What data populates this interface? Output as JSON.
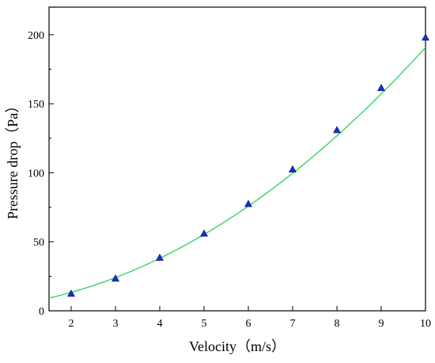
{
  "chart_data": {
    "type": "scatter",
    "xlabel": "Velocity（m/s）",
    "ylabel": "Pressure drop（Pa）",
    "xlim": [
      1.5,
      10
    ],
    "ylim": [
      0,
      220
    ],
    "x_ticks": [
      "2",
      "3",
      "4",
      "5",
      "6",
      "7",
      "8",
      "9",
      "10"
    ],
    "y_ticks": [
      "0",
      "50",
      "100",
      "150",
      "200"
    ],
    "grid": false,
    "legend": "none",
    "series": [
      {
        "type": "scatter",
        "marker": "triangle",
        "color": "#1a2fc9",
        "x": [
          2,
          3,
          4,
          5,
          6,
          7,
          8,
          9,
          10
        ],
        "y": [
          12.5,
          23.5,
          38.5,
          56,
          77.5,
          102.5,
          131,
          161.5,
          198
        ]
      },
      {
        "type": "line",
        "color": "#2bd25a",
        "fit": "quadratic",
        "coefficients": [
          1.64,
          2.5,
          1.8
        ],
        "x_range": [
          1.5,
          10
        ]
      }
    ]
  }
}
